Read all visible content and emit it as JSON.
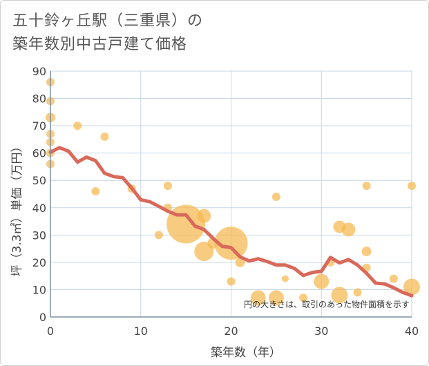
{
  "title_line1": "五十鈴ヶ丘駅（三重県）の",
  "title_line2": "築年数別中古戸建て価格",
  "note": "円の大きさは、取引のあった物件面積を示す",
  "colors": {
    "bubble": "#f5b94f",
    "line": "#d9695a",
    "grid": "#c5d5e6",
    "axis": "#7d8fa3"
  },
  "chart_data": {
    "type": "scatter",
    "title": "五十鈴ヶ丘駅（三重県）の築年数別中古戸建て価格",
    "xlabel": "築年数（年）",
    "ylabel": "坪（3.3㎡）単価（万円）",
    "xlim": [
      0,
      40
    ],
    "ylim": [
      0,
      90
    ],
    "xticks": [
      0,
      10,
      20,
      30,
      40
    ],
    "yticks": [
      0,
      10,
      20,
      30,
      40,
      50,
      60,
      70,
      80,
      90
    ],
    "grid": true,
    "bubbles": [
      {
        "x": 0,
        "y": 86,
        "r": 6
      },
      {
        "x": 0,
        "y": 79,
        "r": 6
      },
      {
        "x": 0,
        "y": 73,
        "r": 7
      },
      {
        "x": 0,
        "y": 67,
        "r": 6
      },
      {
        "x": 0,
        "y": 64,
        "r": 6
      },
      {
        "x": 0,
        "y": 60,
        "r": 6
      },
      {
        "x": 0,
        "y": 56,
        "r": 6
      },
      {
        "x": 3,
        "y": 70,
        "r": 6
      },
      {
        "x": 6,
        "y": 66,
        "r": 6
      },
      {
        "x": 5,
        "y": 46,
        "r": 6
      },
      {
        "x": 9,
        "y": 47,
        "r": 6
      },
      {
        "x": 13,
        "y": 48,
        "r": 6
      },
      {
        "x": 13,
        "y": 40,
        "r": 6
      },
      {
        "x": 12,
        "y": 30,
        "r": 6
      },
      {
        "x": 15,
        "y": 34,
        "r": 28
      },
      {
        "x": 17,
        "y": 37,
        "r": 10
      },
      {
        "x": 17,
        "y": 24,
        "r": 14
      },
      {
        "x": 18,
        "y": 27,
        "r": 8
      },
      {
        "x": 20,
        "y": 27,
        "r": 24
      },
      {
        "x": 21,
        "y": 20,
        "r": 7
      },
      {
        "x": 20,
        "y": 13,
        "r": 6
      },
      {
        "x": 23,
        "y": 7,
        "r": 11
      },
      {
        "x": 25,
        "y": 44,
        "r": 6
      },
      {
        "x": 25,
        "y": 7,
        "r": 11
      },
      {
        "x": 26,
        "y": 14,
        "r": 5
      },
      {
        "x": 28,
        "y": 7,
        "r": 6
      },
      {
        "x": 30,
        "y": 13,
        "r": 11
      },
      {
        "x": 31,
        "y": 20,
        "r": 6
      },
      {
        "x": 32,
        "y": 33,
        "r": 9
      },
      {
        "x": 33,
        "y": 32,
        "r": 10
      },
      {
        "x": 32,
        "y": 8,
        "r": 12
      },
      {
        "x": 34,
        "y": 9,
        "r": 6
      },
      {
        "x": 35,
        "y": 48,
        "r": 6
      },
      {
        "x": 35,
        "y": 24,
        "r": 7
      },
      {
        "x": 35,
        "y": 18,
        "r": 6
      },
      {
        "x": 38,
        "y": 14,
        "r": 6
      },
      {
        "x": 40,
        "y": 48,
        "r": 6
      },
      {
        "x": 40,
        "y": 11,
        "r": 12
      }
    ],
    "trend": {
      "x": [
        0,
        1,
        2,
        3,
        4,
        5,
        6,
        7,
        8,
        9,
        10,
        11,
        12,
        13,
        14,
        15,
        16,
        17,
        18,
        19,
        20,
        21,
        22,
        23,
        24,
        25,
        26,
        27,
        28,
        29,
        30,
        31,
        32,
        33,
        34,
        35,
        36,
        37,
        38,
        39,
        40
      ],
      "y": [
        60.3,
        62.0,
        60.7,
        56.7,
        58.5,
        57.2,
        52.6,
        51.4,
        51.0,
        47.2,
        42.9,
        42.2,
        40.5,
        38.7,
        37.4,
        37.4,
        33.3,
        32.0,
        28.8,
        25.9,
        25.4,
        22.0,
        20.5,
        21.3,
        20.3,
        19.0,
        19.0,
        17.8,
        15.2,
        16.3,
        16.7,
        21.8,
        19.8,
        21.0,
        19.0,
        16.0,
        12.4,
        12.1,
        10.7,
        9.0,
        7.8
      ]
    }
  }
}
